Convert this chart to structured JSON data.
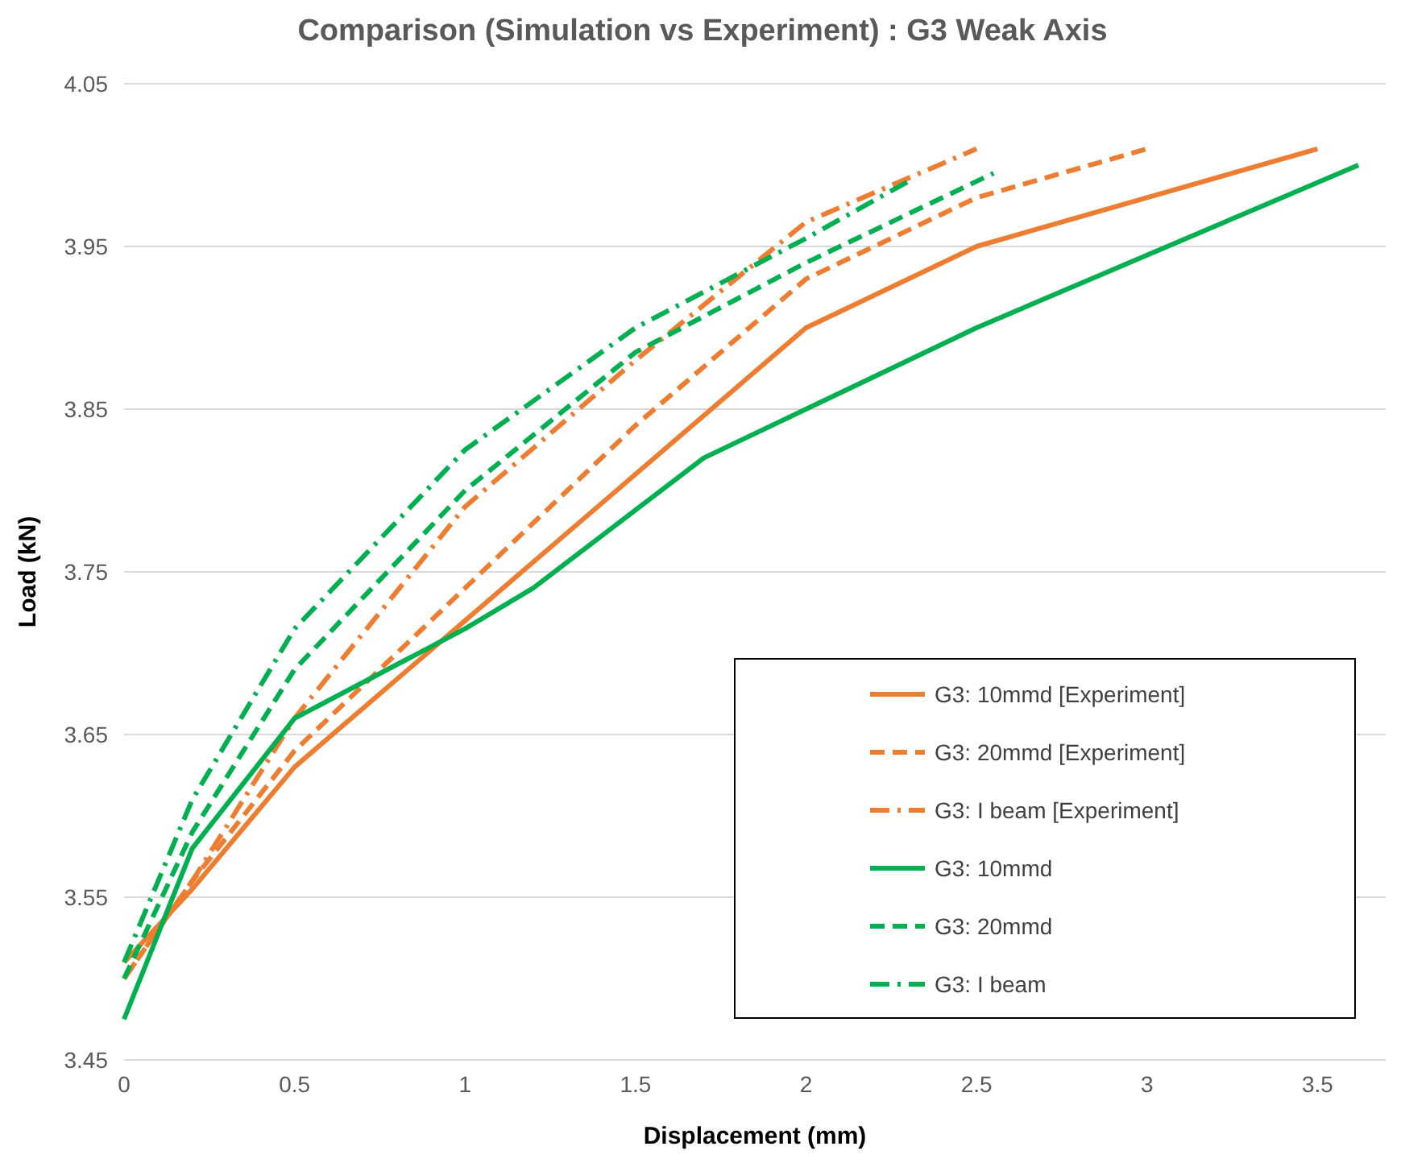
{
  "chart_data": {
    "type": "line",
    "title": "Comparison (Simulation vs Experiment) : G3 Weak Axis",
    "xlabel": "Displacement (mm)",
    "ylabel": "Load (kN)",
    "xlim": [
      0,
      3.7
    ],
    "xticks": [
      0,
      0.5,
      1,
      1.5,
      2,
      2.5,
      3,
      3.5
    ],
    "ylim": [
      3.45,
      4.05
    ],
    "yticks": [
      3.45,
      3.55,
      3.65,
      3.75,
      3.85,
      3.95,
      4.05
    ],
    "grid": "y",
    "legend": "bottom right",
    "series": [
      {
        "name": "G3: 10mmd [Experiment]",
        "color": "#ed7d31",
        "line_style": "solid",
        "x": [
          0,
          0.2,
          0.5,
          1,
          1.5,
          2,
          2.5,
          3.5
        ],
        "values": [
          3.51,
          3.555,
          3.63,
          3.72,
          3.81,
          3.9,
          3.95,
          4.01
        ]
      },
      {
        "name": "G3: 20mmd [Experiment]",
        "color": "#ed7d31",
        "line_style": "dashed",
        "x": [
          0,
          0.2,
          0.5,
          1,
          1.5,
          2,
          2.5,
          3
        ],
        "values": [
          3.5,
          3.56,
          3.64,
          3.74,
          3.84,
          3.93,
          3.98,
          4.01
        ]
      },
      {
        "name": "G3: I beam [Experiment]",
        "color": "#ed7d31",
        "line_style": "dashdot",
        "x": [
          0,
          0.2,
          0.5,
          1,
          1.5,
          2,
          2.5
        ],
        "values": [
          3.5,
          3.56,
          3.66,
          3.79,
          3.88,
          3.965,
          4.01
        ]
      },
      {
        "name": "G3: 10mmd",
        "color": "#00b050",
        "line_style": "solid",
        "x": [
          0,
          0.2,
          0.5,
          1,
          1.2,
          1.7,
          2.5,
          3.62
        ],
        "values": [
          3.475,
          3.58,
          3.66,
          3.715,
          3.74,
          3.82,
          3.9,
          4.0
        ]
      },
      {
        "name": "G3: 20mmd",
        "color": "#00b050",
        "line_style": "dashed",
        "x": [
          0,
          0.2,
          0.5,
          1,
          1.5,
          2,
          2.55
        ],
        "values": [
          3.5,
          3.59,
          3.69,
          3.8,
          3.885,
          3.94,
          3.995
        ]
      },
      {
        "name": "G3: I beam",
        "color": "#00b050",
        "line_style": "dashdot",
        "x": [
          0,
          0.2,
          0.5,
          1,
          1.5,
          2,
          2.3
        ],
        "values": [
          3.51,
          3.61,
          3.715,
          3.825,
          3.9,
          3.955,
          3.99
        ]
      }
    ]
  }
}
